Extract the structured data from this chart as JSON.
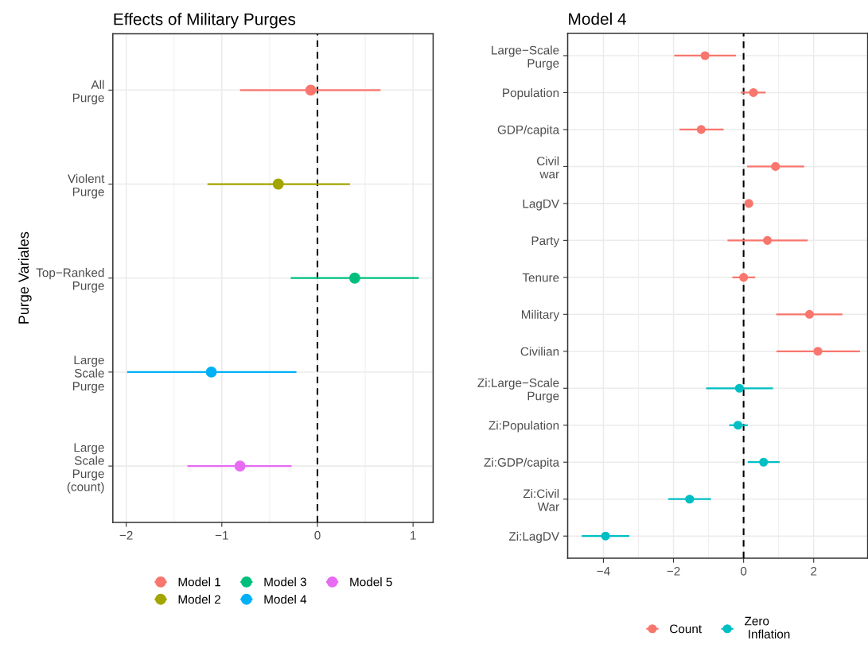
{
  "chart_data": [
    {
      "type": "scatter",
      "orientation": "horizontal",
      "title": "Effects of Military Purges",
      "ylabel": "Purge Variales",
      "categories": [
        "All\nPurge",
        "Violent\nPurge",
        "Top−Ranked\nPurge",
        "Large\nScale\nPurge",
        "Large\nScale\nPurge\n(count)"
      ],
      "series": [
        {
          "name": "Model 1",
          "color": "#f8766d",
          "values": [
            -0.07,
            null,
            null,
            null,
            null
          ],
          "errors": [
            [
              -0.81,
              0.66
            ],
            null,
            null,
            null,
            null
          ]
        },
        {
          "name": "Model 2",
          "color": "#a3a500",
          "values": [
            null,
            -0.41,
            null,
            null,
            null
          ],
          "errors": [
            null,
            [
              -1.15,
              0.34
            ],
            null,
            null,
            null
          ]
        },
        {
          "name": "Model 3",
          "color": "#00bf7d",
          "values": [
            null,
            null,
            0.39,
            null,
            null
          ],
          "errors": [
            null,
            null,
            [
              -0.28,
              1.06
            ],
            null,
            null
          ]
        },
        {
          "name": "Model 4",
          "color": "#00b0f6",
          "values": [
            null,
            null,
            null,
            -1.11,
            null
          ],
          "errors": [
            null,
            null,
            null,
            [
              -1.99,
              -0.22
            ],
            null
          ]
        },
        {
          "name": "Model 5",
          "color": "#e76bf3",
          "values": [
            null,
            null,
            null,
            null,
            -0.81
          ],
          "errors": [
            null,
            null,
            null,
            null,
            [
              -1.36,
              -0.27
            ]
          ]
        }
      ],
      "xlim": [
        -2.14,
        1.21
      ],
      "xticks": [
        {
          "value": -2,
          "label": "−2"
        },
        {
          "value": -1,
          "label": "−1"
        },
        0,
        1
      ],
      "ref_lines": [
        {
          "axis": "x",
          "value": 0,
          "color": "#000000",
          "line_style": "dashed"
        }
      ],
      "grid": true,
      "legend": "bottom",
      "marker": "circle"
    },
    {
      "type": "scatter",
      "orientation": "horizontal",
      "title": "Model 4",
      "categories": [
        "Large−Scale\nPurge",
        "Population",
        "GDP/capita",
        "Civil\nwar",
        "LagDV",
        "Party",
        "Tenure",
        "Military",
        "Civilian",
        "Zi:Large−Scale\nPurge",
        "Zi:Population",
        "Zi:GDP/capita",
        "Zi:Civil\nWar",
        "Zi:LagDV"
      ],
      "series": [
        {
          "name": "Count",
          "color": "#f8766d",
          "values": [
            -1.1,
            0.28,
            -1.21,
            0.91,
            0.15,
            0.68,
            0.0,
            1.88,
            2.12,
            null,
            null,
            null,
            null,
            null
          ],
          "errors": [
            [
              -1.98,
              -0.22
            ],
            [
              -0.08,
              0.63
            ],
            [
              -1.83,
              -0.57
            ],
            [
              0.1,
              1.73
            ],
            null,
            [
              -0.46,
              1.83
            ],
            [
              -0.32,
              0.33
            ],
            [
              0.93,
              2.82
            ],
            [
              0.94,
              3.32
            ],
            null,
            null,
            null,
            null,
            null
          ]
        },
        {
          "name": "Zero\n Inflation",
          "color": "#00bfc4",
          "values": [
            null,
            null,
            null,
            null,
            null,
            null,
            null,
            null,
            null,
            -0.12,
            -0.16,
            0.57,
            -1.54,
            -3.94
          ],
          "errors": [
            null,
            null,
            null,
            null,
            null,
            null,
            null,
            null,
            null,
            [
              -1.07,
              0.84
            ],
            [
              -0.41,
              0.12
            ],
            [
              0.12,
              1.03
            ],
            [
              -2.15,
              -0.93
            ],
            [
              -4.62,
              -3.26
            ]
          ]
        }
      ],
      "xlim": [
        -5.02,
        3.54
      ],
      "xticks": [
        {
          "value": -4,
          "label": "−4"
        },
        {
          "value": -2,
          "label": "−2"
        },
        0,
        2
      ],
      "ref_lines": [
        {
          "axis": "x",
          "value": 0,
          "color": "#000000",
          "line_style": "dashed"
        }
      ],
      "grid": true,
      "legend": "bottom",
      "marker": "circle"
    }
  ]
}
